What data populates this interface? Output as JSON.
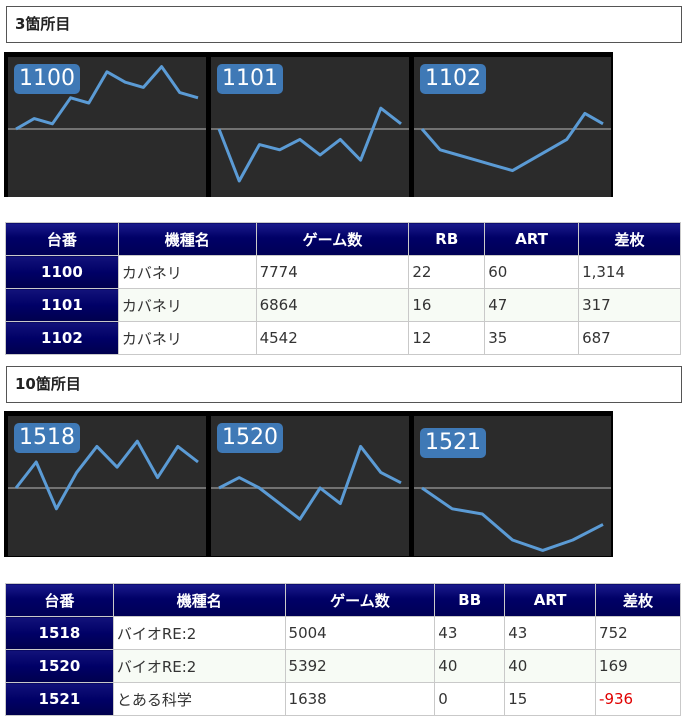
{
  "sections": [
    {
      "title": "3箇所目",
      "graphs": [
        {
          "machine_no": "1100",
          "series": [
            0,
            2,
            1,
            6,
            5,
            11,
            9,
            8,
            12,
            7,
            6
          ]
        },
        {
          "machine_no": "1101",
          "series": [
            0,
            -10,
            -3,
            -4,
            -2,
            -5,
            -2,
            -6,
            4,
            1
          ]
        },
        {
          "machine_no": "1102",
          "series": [
            0,
            -4,
            -5,
            -6,
            -7,
            -8,
            -6,
            -4,
            -2,
            3,
            1
          ]
        }
      ],
      "table": {
        "headers": [
          "台番",
          "機種名",
          "ゲーム数",
          "RB",
          "ART",
          "差枚"
        ],
        "rows": [
          {
            "no": "1100",
            "name": "カバネリ",
            "games": "7774",
            "bb": "22",
            "art": "60",
            "diff": "1,314",
            "negative": false
          },
          {
            "no": "1101",
            "name": "カバネリ",
            "games": "6864",
            "bb": "16",
            "art": "47",
            "diff": "317",
            "negative": false
          },
          {
            "no": "1102",
            "name": "カバネリ",
            "games": "4542",
            "bb": "12",
            "art": "35",
            "diff": "687",
            "negative": false
          }
        ]
      }
    },
    {
      "title": "10箇所目",
      "graphs": [
        {
          "machine_no": "1518",
          "series": [
            0,
            5,
            -4,
            3,
            8,
            4,
            9,
            2,
            8,
            5
          ]
        },
        {
          "machine_no": "1520",
          "series": [
            0,
            2,
            0,
            -3,
            -6,
            0,
            -3,
            8,
            3,
            1
          ]
        },
        {
          "machine_no": "1521",
          "series": [
            0,
            -4,
            -5,
            -10,
            -12,
            -10,
            -7
          ]
        }
      ],
      "table": {
        "headers": [
          "台番",
          "機種名",
          "ゲーム数",
          "BB",
          "ART",
          "差枚"
        ],
        "rows": [
          {
            "no": "1518",
            "name": "バイオRE:2",
            "games": "5004",
            "bb": "43",
            "art": "43",
            "diff": "752",
            "negative": false
          },
          {
            "no": "1520",
            "name": "バイオRE:2",
            "games": "5392",
            "bb": "40",
            "art": "40",
            "diff": "169",
            "negative": false
          },
          {
            "no": "1521",
            "name": "とある科学",
            "games": "1638",
            "bb": "0",
            "art": "15",
            "diff": "-936",
            "negative": true
          }
        ]
      }
    }
  ],
  "colors": {
    "header_navy": "#000066",
    "line_blue": "#5b9bd5",
    "badge_blue": "#3f79b6",
    "negative_red": "#e00000"
  }
}
